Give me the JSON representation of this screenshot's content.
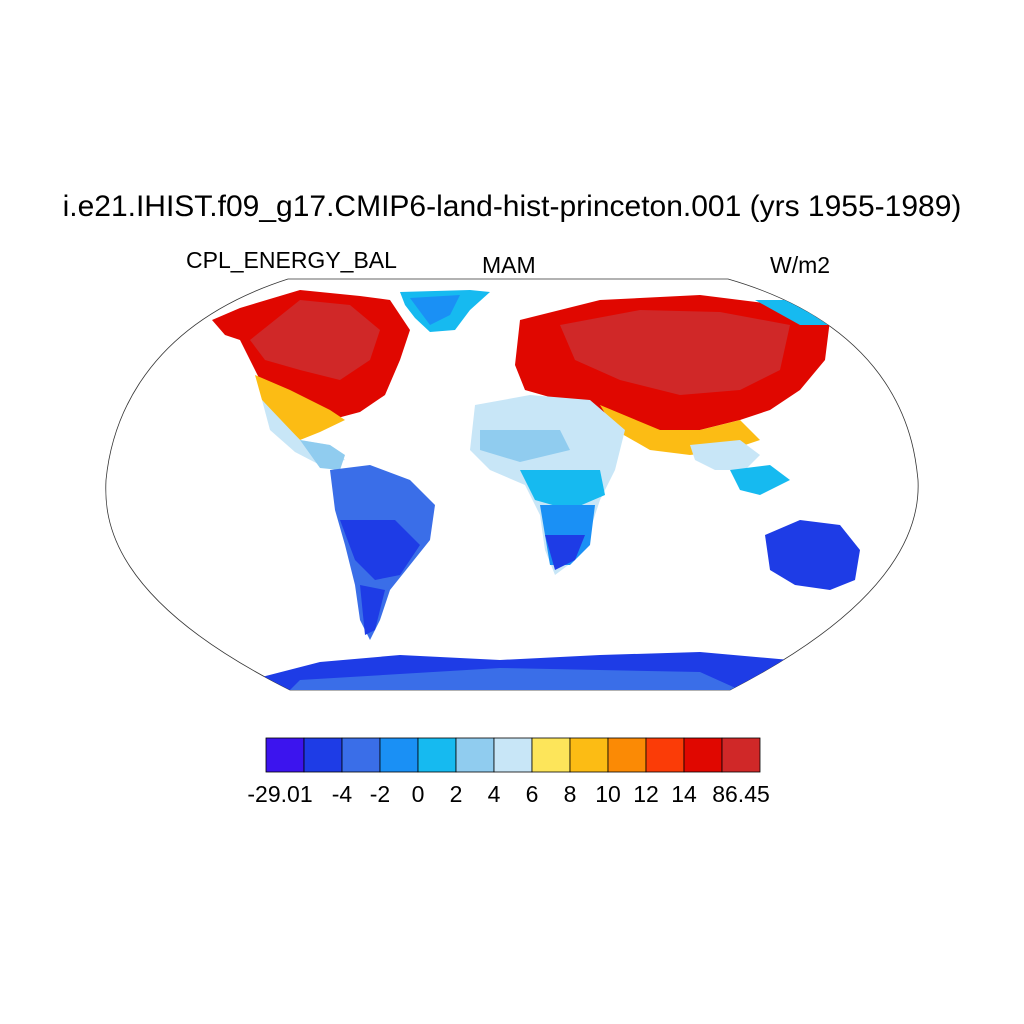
{
  "title": "i.e21.IHIST.f09_g17.CMIP6-land-hist-princeton.001 (yrs 1955-1989)",
  "left_label": "CPL_ENERGY_BAL",
  "center_label": "MAM",
  "right_label": "W/m2",
  "colorbar": {
    "colors": [
      "#3c14ee",
      "#1e3ce6",
      "#3a6ee8",
      "#1a90f5",
      "#16baf0",
      "#90ccef",
      "#c8e6f7",
      "#fde55a",
      "#fcbc14",
      "#fb8a05",
      "#fb3c07",
      "#e00700",
      "#d02828"
    ],
    "labels": [
      "-29.01",
      "-4",
      "-2",
      "0",
      "2",
      "4",
      "6",
      "8",
      "10",
      "12",
      "14",
      "86.45"
    ]
  }
}
